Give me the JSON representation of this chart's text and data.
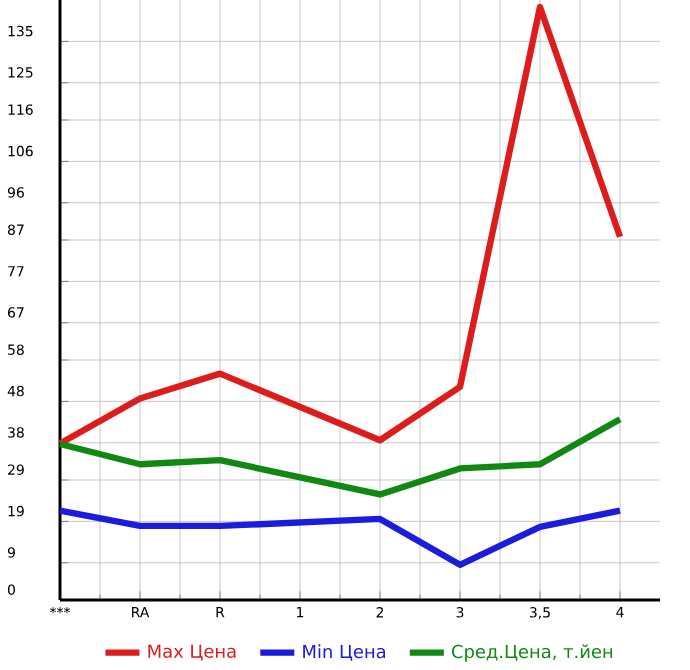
{
  "chart_data": {
    "type": "line",
    "categories": [
      "***",
      "RA",
      "R",
      "1",
      "2",
      "3",
      "3,5",
      "4"
    ],
    "series": [
      {
        "name": "Max Цена",
        "color": "#dd1c1c",
        "values": [
          37.8,
          48.7,
          54.7,
          null,
          38.6,
          51.5,
          143.3,
          87.8
        ]
      },
      {
        "name": "Min Цена",
        "color": "#1c1cdd",
        "values": [
          21.6,
          17.9,
          17.9,
          null,
          19.6,
          8.5,
          17.7,
          21.6
        ]
      },
      {
        "name": "Сред.Цена, т.йен",
        "color": "#118811",
        "values": [
          37.7,
          32.8,
          33.8,
          null,
          25.5,
          31.8,
          32.8,
          43.7
        ]
      }
    ],
    "ylim": [
      0,
      145
    ],
    "yticks": [
      0,
      9,
      19,
      29,
      38,
      48,
      58,
      67,
      77,
      87,
      96,
      106,
      116,
      125,
      135
    ],
    "grid": true,
    "legend": "bottom"
  }
}
